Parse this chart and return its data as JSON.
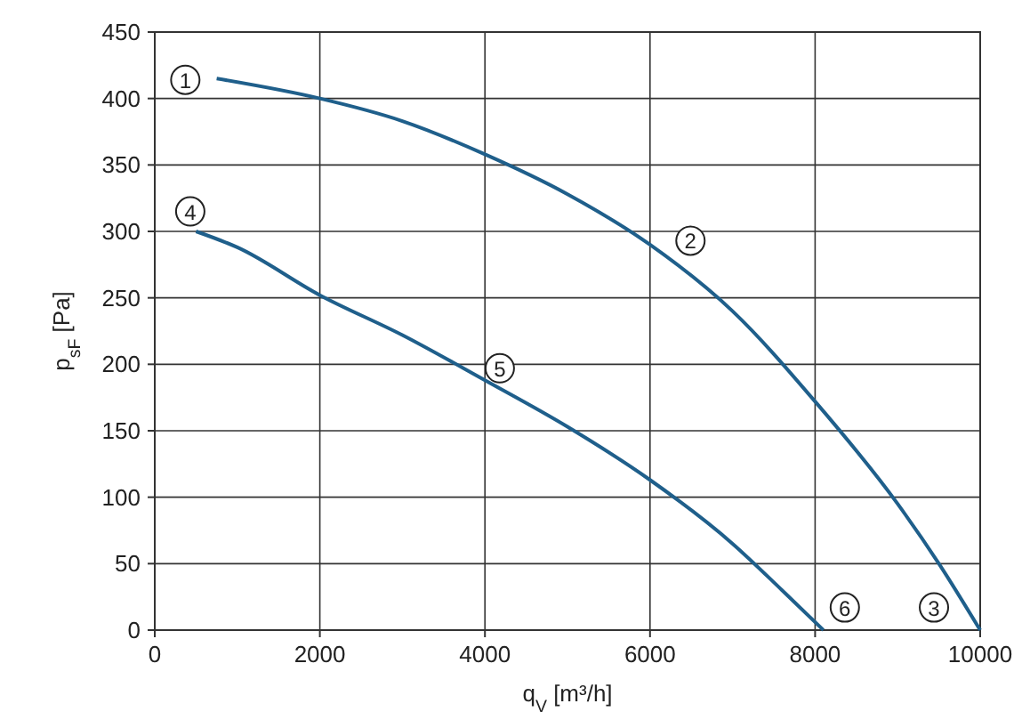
{
  "chart_data": {
    "type": "line",
    "xlabel": "q$_{V}$ [m³/h]",
    "ylabel": "p$_{sF}$ [Pa]",
    "xlim": [
      0,
      10000
    ],
    "ylim": [
      0,
      450
    ],
    "xticks": [
      0,
      2000,
      4000,
      6000,
      8000,
      10000
    ],
    "yticks": [
      0,
      50,
      100,
      150,
      200,
      250,
      300,
      350,
      400,
      450
    ],
    "grid": true,
    "marker": "none",
    "line_style": "solid",
    "series": [
      {
        "color": "#1f5f8b",
        "x": [
          750,
          2000,
          3000,
          4000,
          5000,
          6000,
          7000,
          8000,
          9000,
          9500,
          10000
        ],
        "values": [
          415,
          400,
          383,
          358,
          328,
          290,
          240,
          172,
          95,
          50,
          0
        ]
      },
      {
        "color": "#1f5f8b",
        "x": [
          500,
          1000,
          2000,
          3000,
          4000,
          5000,
          6000,
          7000,
          7600,
          8100
        ],
        "values": [
          300,
          288,
          252,
          222,
          188,
          153,
          113,
          65,
          30,
          0
        ]
      }
    ],
    "annotations": [
      {
        "text": "1",
        "x": 370,
        "y": 414
      },
      {
        "text": "2",
        "x": 6490,
        "y": 293
      },
      {
        "text": "3",
        "x": 9440,
        "y": 17
      },
      {
        "text": "4",
        "x": 430,
        "y": 315
      },
      {
        "text": "5",
        "x": 4180,
        "y": 197
      },
      {
        "text": "6",
        "x": 8360,
        "y": 17
      }
    ]
  }
}
